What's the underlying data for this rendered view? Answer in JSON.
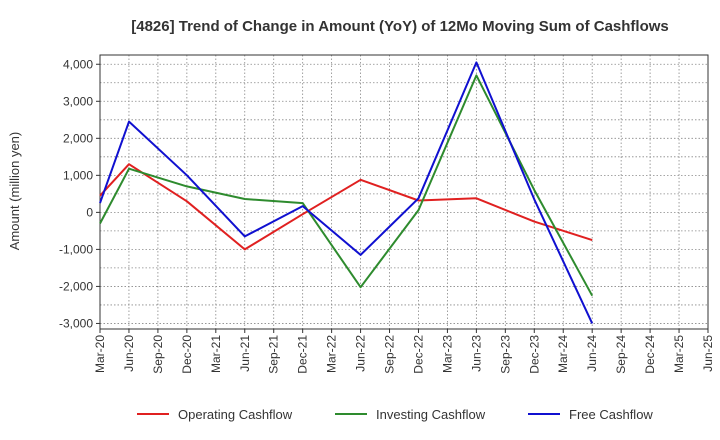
{
  "chart_data": {
    "type": "line",
    "title": "[4826]  Trend of Change in Amount (YoY) of 12Mo Moving Sum of Cashflows",
    "xlabel": "",
    "ylabel": "Amount (million yen)",
    "ylim": [
      -3150,
      4250
    ],
    "yticks": [
      4000,
      3000,
      2000,
      1000,
      0,
      -1000,
      -2000,
      -3000
    ],
    "ytick_labels": [
      "4,000",
      "3,000",
      "2,000",
      "1,000",
      "0",
      "-1,000",
      "-2,000",
      "-3,000"
    ],
    "categories": [
      "Mar-20",
      "Jun-20",
      "Sep-20",
      "Dec-20",
      "Mar-21",
      "Jun-21",
      "Sep-21",
      "Dec-21",
      "Mar-22",
      "Jun-22",
      "Sep-22",
      "Dec-22",
      "Mar-23",
      "Jun-23",
      "Sep-23",
      "Dec-23",
      "Mar-24",
      "Jun-24",
      "Sep-24",
      "Dec-24",
      "Mar-25",
      "Jun-25"
    ],
    "grid": true,
    "legend_position": "bottom",
    "series": [
      {
        "name": "Operating Cashflow",
        "color": "#e02020",
        "values": [
          450,
          1300,
          null,
          300,
          null,
          -1000,
          null,
          -50,
          null,
          880,
          null,
          320,
          null,
          380,
          null,
          -250,
          null,
          -750,
          null,
          null,
          null,
          null
        ]
      },
      {
        "name": "Investing Cashflow",
        "color": "#2e8b2e",
        "values": [
          -300,
          1180,
          null,
          700,
          null,
          360,
          null,
          250,
          null,
          -2020,
          null,
          60,
          null,
          3700,
          null,
          600,
          null,
          -2250,
          null,
          null,
          null,
          null
        ]
      },
      {
        "name": "Free Cashflow",
        "color": "#1010d0",
        "values": [
          250,
          2450,
          null,
          1000,
          null,
          -650,
          null,
          170,
          null,
          -1150,
          null,
          380,
          null,
          4050,
          null,
          350,
          null,
          -3000,
          null,
          null,
          null,
          null
        ]
      }
    ]
  }
}
